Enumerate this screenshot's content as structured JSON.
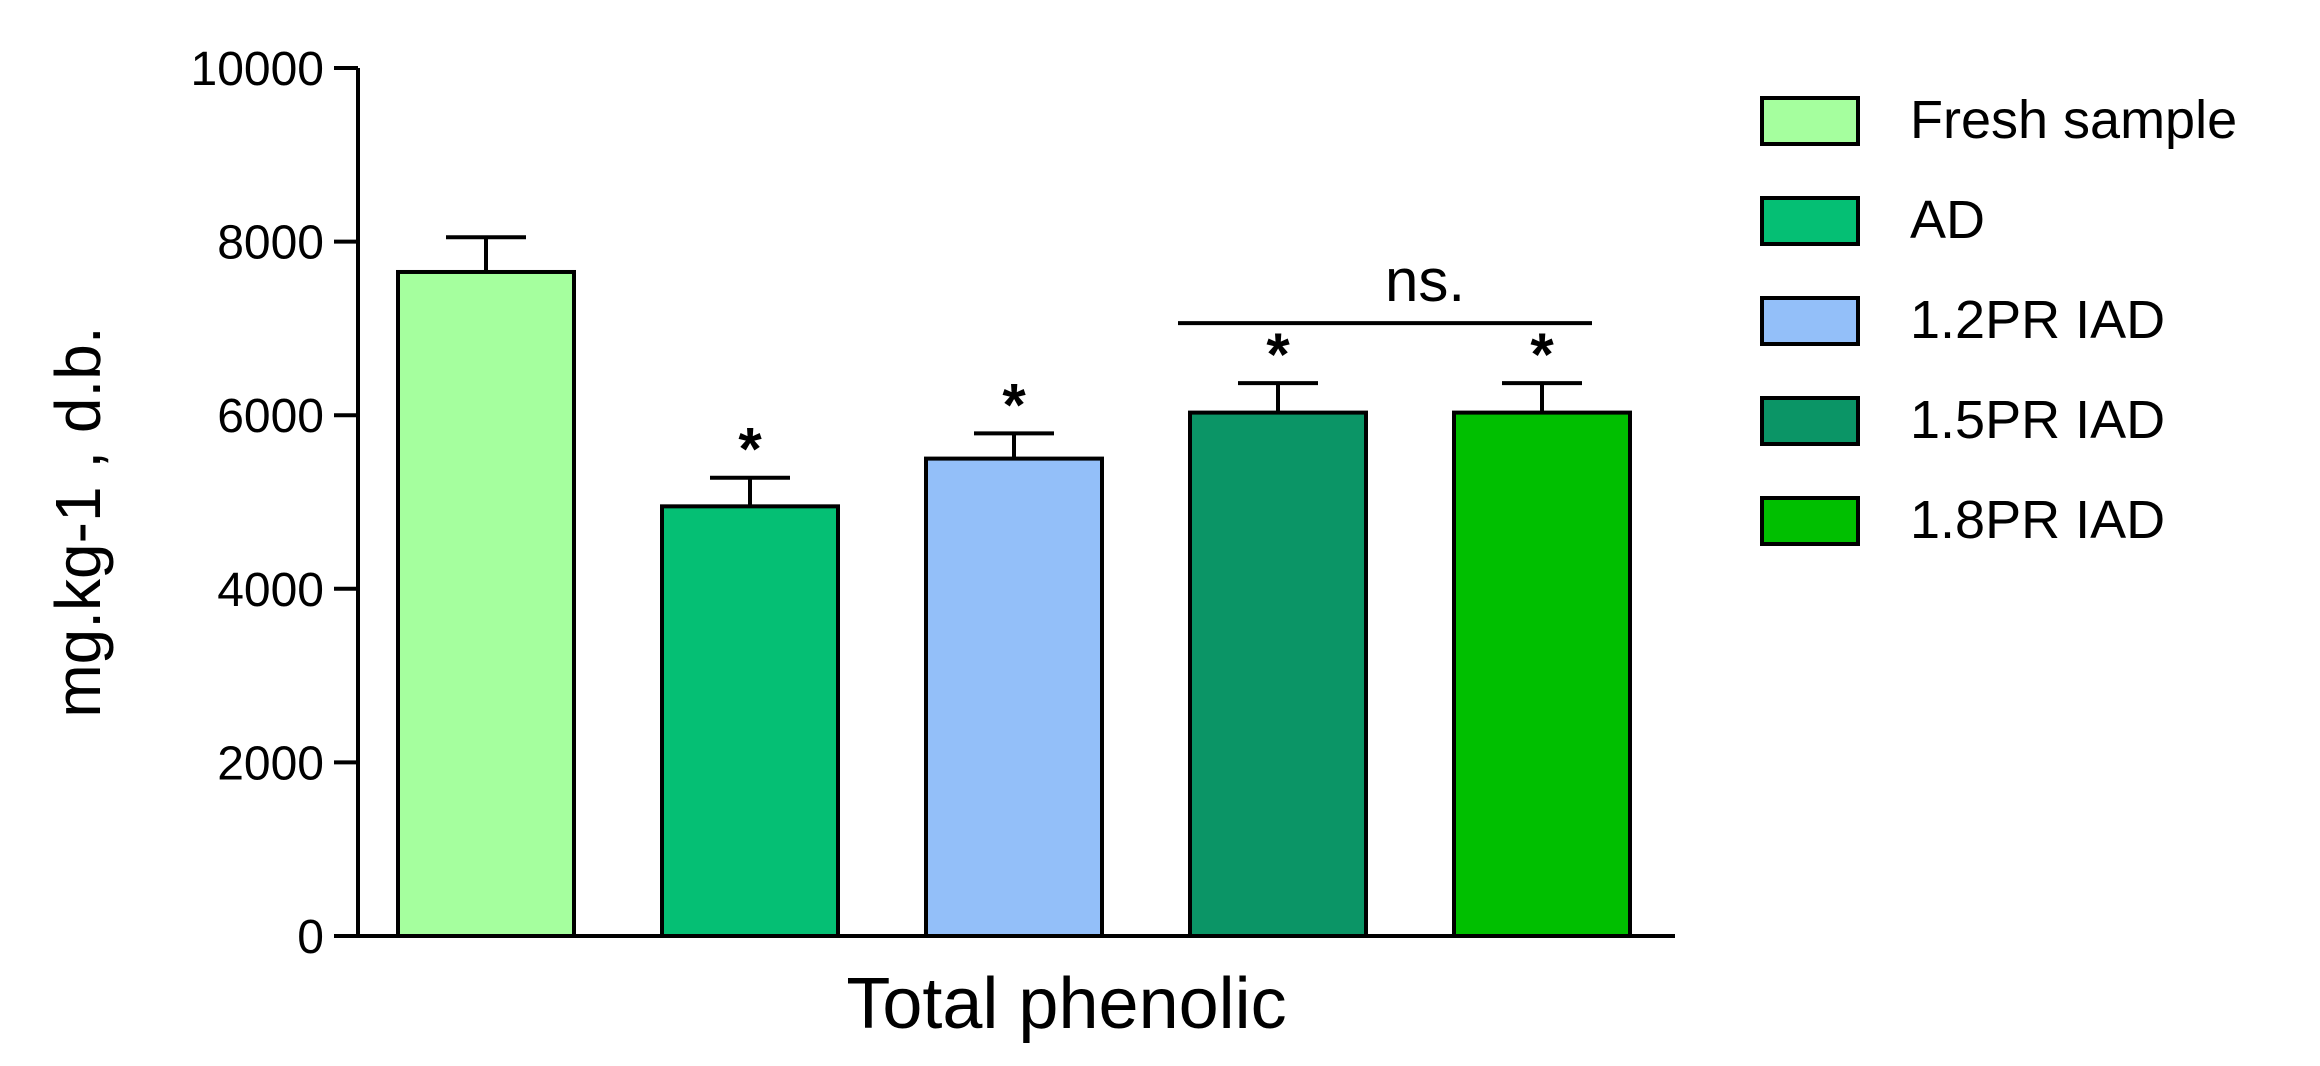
{
  "chart_data": {
    "type": "bar",
    "xlabel": "Total phenolic",
    "ylabel": "mg.kg-1 , d.b.",
    "ylim": [
      0,
      10000
    ],
    "yticks": [
      0,
      2000,
      4000,
      6000,
      8000,
      10000
    ],
    "legend_position": "right",
    "series": [
      {
        "name": "Fresh sample",
        "value": 7650,
        "error": 400,
        "color": "#a5ff9e",
        "annotation": ""
      },
      {
        "name": "AD",
        "value": 4950,
        "error": 330,
        "color": "#05bf74",
        "annotation": "*"
      },
      {
        "name": "1.2PR IAD",
        "value": 5500,
        "error": 290,
        "color": "#93bff9",
        "annotation": "*"
      },
      {
        "name": "1.5PR IAD",
        "value": 6030,
        "error": 340,
        "color": "#0b9566",
        "annotation": "*"
      },
      {
        "name": "1.8PR IAD",
        "value": 6030,
        "error": 340,
        "color": "#00bf00",
        "annotation": "*"
      }
    ],
    "comparison": {
      "label": "ns.",
      "from_series": 3,
      "to_series": 4
    }
  }
}
